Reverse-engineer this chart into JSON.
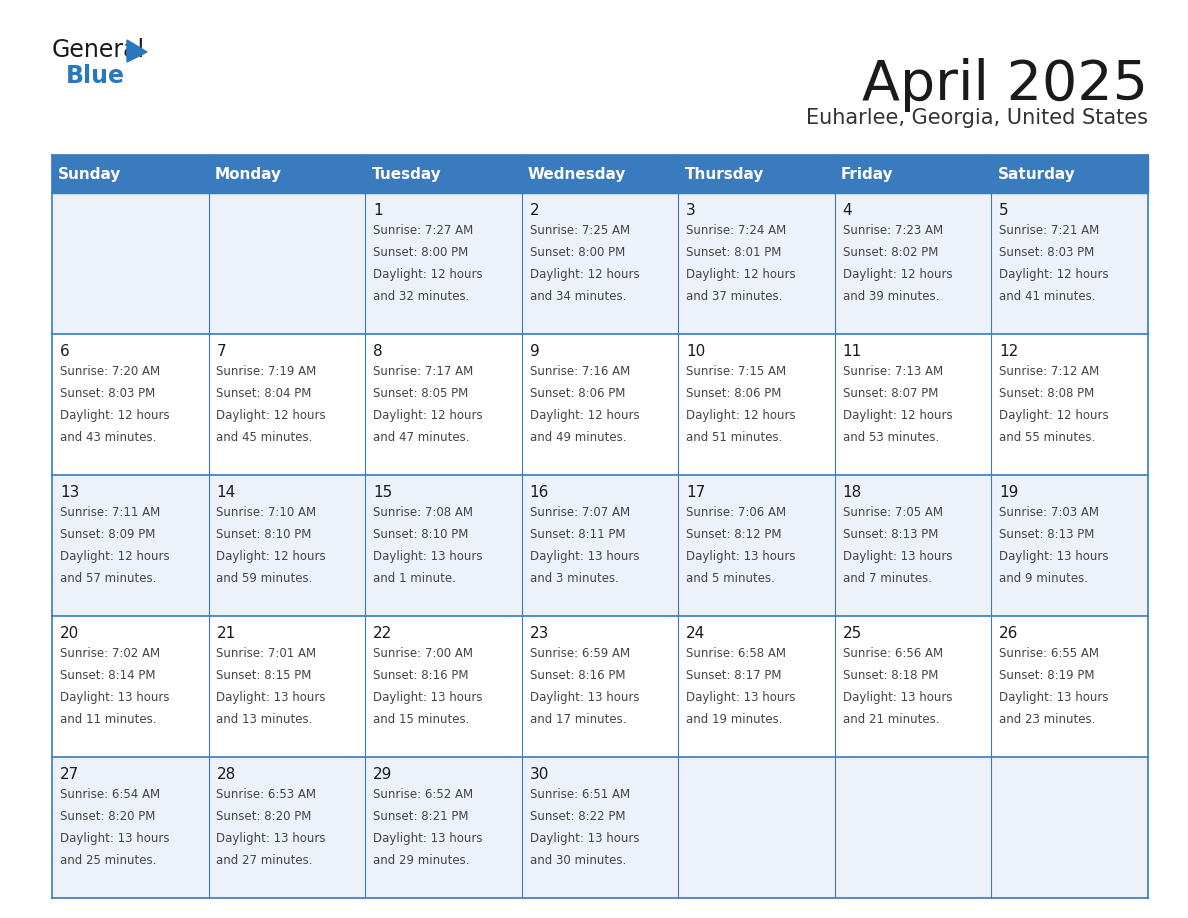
{
  "title": "April 2025",
  "subtitle": "Euharlee, Georgia, United States",
  "header_color": "#3a7abf",
  "header_text_color": "#ffffff",
  "border_color": "#3a7abf",
  "day_headers": [
    "Sunday",
    "Monday",
    "Tuesday",
    "Wednesday",
    "Thursday",
    "Friday",
    "Saturday"
  ],
  "title_color": "#1a1a1a",
  "subtitle_color": "#333333",
  "cell_text_color": "#444444",
  "day_num_color": "#1a1a1a",
  "logo_black": "#1a1a1a",
  "logo_blue": "#2878c0",
  "row_colors": [
    "#edf2fa",
    "#ffffff",
    "#edf2fa",
    "#ffffff",
    "#edf2fa"
  ],
  "weeks": [
    [
      {
        "day": "",
        "sunrise": "",
        "sunset": "",
        "daylight": "",
        "daylight2": ""
      },
      {
        "day": "",
        "sunrise": "",
        "sunset": "",
        "daylight": "",
        "daylight2": ""
      },
      {
        "day": "1",
        "sunrise": "7:27 AM",
        "sunset": "8:00 PM",
        "daylight": "12 hours",
        "daylight2": "and 32 minutes."
      },
      {
        "day": "2",
        "sunrise": "7:25 AM",
        "sunset": "8:00 PM",
        "daylight": "12 hours",
        "daylight2": "and 34 minutes."
      },
      {
        "day": "3",
        "sunrise": "7:24 AM",
        "sunset": "8:01 PM",
        "daylight": "12 hours",
        "daylight2": "and 37 minutes."
      },
      {
        "day": "4",
        "sunrise": "7:23 AM",
        "sunset": "8:02 PM",
        "daylight": "12 hours",
        "daylight2": "and 39 minutes."
      },
      {
        "day": "5",
        "sunrise": "7:21 AM",
        "sunset": "8:03 PM",
        "daylight": "12 hours",
        "daylight2": "and 41 minutes."
      }
    ],
    [
      {
        "day": "6",
        "sunrise": "7:20 AM",
        "sunset": "8:03 PM",
        "daylight": "12 hours",
        "daylight2": "and 43 minutes."
      },
      {
        "day": "7",
        "sunrise": "7:19 AM",
        "sunset": "8:04 PM",
        "daylight": "12 hours",
        "daylight2": "and 45 minutes."
      },
      {
        "day": "8",
        "sunrise": "7:17 AM",
        "sunset": "8:05 PM",
        "daylight": "12 hours",
        "daylight2": "and 47 minutes."
      },
      {
        "day": "9",
        "sunrise": "7:16 AM",
        "sunset": "8:06 PM",
        "daylight": "12 hours",
        "daylight2": "and 49 minutes."
      },
      {
        "day": "10",
        "sunrise": "7:15 AM",
        "sunset": "8:06 PM",
        "daylight": "12 hours",
        "daylight2": "and 51 minutes."
      },
      {
        "day": "11",
        "sunrise": "7:13 AM",
        "sunset": "8:07 PM",
        "daylight": "12 hours",
        "daylight2": "and 53 minutes."
      },
      {
        "day": "12",
        "sunrise": "7:12 AM",
        "sunset": "8:08 PM",
        "daylight": "12 hours",
        "daylight2": "and 55 minutes."
      }
    ],
    [
      {
        "day": "13",
        "sunrise": "7:11 AM",
        "sunset": "8:09 PM",
        "daylight": "12 hours",
        "daylight2": "and 57 minutes."
      },
      {
        "day": "14",
        "sunrise": "7:10 AM",
        "sunset": "8:10 PM",
        "daylight": "12 hours",
        "daylight2": "and 59 minutes."
      },
      {
        "day": "15",
        "sunrise": "7:08 AM",
        "sunset": "8:10 PM",
        "daylight": "13 hours",
        "daylight2": "and 1 minute."
      },
      {
        "day": "16",
        "sunrise": "7:07 AM",
        "sunset": "8:11 PM",
        "daylight": "13 hours",
        "daylight2": "and 3 minutes."
      },
      {
        "day": "17",
        "sunrise": "7:06 AM",
        "sunset": "8:12 PM",
        "daylight": "13 hours",
        "daylight2": "and 5 minutes."
      },
      {
        "day": "18",
        "sunrise": "7:05 AM",
        "sunset": "8:13 PM",
        "daylight": "13 hours",
        "daylight2": "and 7 minutes."
      },
      {
        "day": "19",
        "sunrise": "7:03 AM",
        "sunset": "8:13 PM",
        "daylight": "13 hours",
        "daylight2": "and 9 minutes."
      }
    ],
    [
      {
        "day": "20",
        "sunrise": "7:02 AM",
        "sunset": "8:14 PM",
        "daylight": "13 hours",
        "daylight2": "and 11 minutes."
      },
      {
        "day": "21",
        "sunrise": "7:01 AM",
        "sunset": "8:15 PM",
        "daylight": "13 hours",
        "daylight2": "and 13 minutes."
      },
      {
        "day": "22",
        "sunrise": "7:00 AM",
        "sunset": "8:16 PM",
        "daylight": "13 hours",
        "daylight2": "and 15 minutes."
      },
      {
        "day": "23",
        "sunrise": "6:59 AM",
        "sunset": "8:16 PM",
        "daylight": "13 hours",
        "daylight2": "and 17 minutes."
      },
      {
        "day": "24",
        "sunrise": "6:58 AM",
        "sunset": "8:17 PM",
        "daylight": "13 hours",
        "daylight2": "and 19 minutes."
      },
      {
        "day": "25",
        "sunrise": "6:56 AM",
        "sunset": "8:18 PM",
        "daylight": "13 hours",
        "daylight2": "and 21 minutes."
      },
      {
        "day": "26",
        "sunrise": "6:55 AM",
        "sunset": "8:19 PM",
        "daylight": "13 hours",
        "daylight2": "and 23 minutes."
      }
    ],
    [
      {
        "day": "27",
        "sunrise": "6:54 AM",
        "sunset": "8:20 PM",
        "daylight": "13 hours",
        "daylight2": "and 25 minutes."
      },
      {
        "day": "28",
        "sunrise": "6:53 AM",
        "sunset": "8:20 PM",
        "daylight": "13 hours",
        "daylight2": "and 27 minutes."
      },
      {
        "day": "29",
        "sunrise": "6:52 AM",
        "sunset": "8:21 PM",
        "daylight": "13 hours",
        "daylight2": "and 29 minutes."
      },
      {
        "day": "30",
        "sunrise": "6:51 AM",
        "sunset": "8:22 PM",
        "daylight": "13 hours",
        "daylight2": "and 30 minutes."
      },
      {
        "day": "",
        "sunrise": "",
        "sunset": "",
        "daylight": "",
        "daylight2": ""
      },
      {
        "day": "",
        "sunrise": "",
        "sunset": "",
        "daylight": "",
        "daylight2": ""
      },
      {
        "day": "",
        "sunrise": "",
        "sunset": "",
        "daylight": "",
        "daylight2": ""
      }
    ]
  ]
}
